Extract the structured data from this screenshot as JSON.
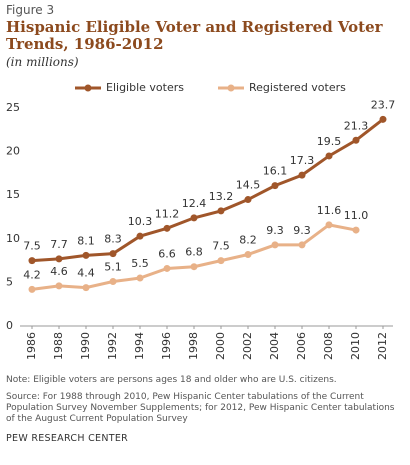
{
  "chart_data": {
    "type": "line",
    "figure_label": "Figure 3",
    "title": "Hispanic Eligible  Voter and Registered Voter Trends, 1986-2012",
    "subtitle": "(in millions)",
    "categories": [
      "1986",
      "1988",
      "1990",
      "1992",
      "1994",
      "1996",
      "1998",
      "2000",
      "2002",
      "2004",
      "2006",
      "2008",
      "2010",
      "2012"
    ],
    "series": [
      {
        "name": "Eligible voters",
        "color": "#a0562a",
        "values": [
          7.5,
          7.7,
          8.1,
          8.3,
          10.3,
          11.2,
          12.4,
          13.2,
          14.5,
          16.1,
          17.3,
          19.5,
          21.3,
          23.7
        ]
      },
      {
        "name": "Registered voters",
        "color": "#e8b188",
        "values": [
          4.2,
          4.6,
          4.4,
          5.1,
          5.5,
          6.6,
          6.8,
          7.5,
          8.2,
          9.3,
          9.3,
          11.6,
          11.0,
          null
        ],
        "value_labels": [
          "4.2",
          "4.6",
          "4.4",
          "5.1",
          "5.5",
          "6.6",
          "6.8",
          "7.5",
          "8.2",
          "9.3",
          "9.3",
          "11.6",
          "11.0",
          null
        ]
      }
    ],
    "ylim": [
      0,
      25
    ],
    "yticks": [
      0,
      5,
      10,
      15,
      20,
      25
    ],
    "grid": false,
    "legend": "top",
    "note": "Note: Eligible voters are persons ages 18 and older who are U.S. citizens.",
    "source": "Source: For 1988 through 2010, Pew Hispanic Center tabulations of the Current Population Survey November Supplements; for 2012, Pew Hispanic Center tabulations of the August Current Population Survey",
    "credit": "PEW RESEARCH CENTER"
  }
}
